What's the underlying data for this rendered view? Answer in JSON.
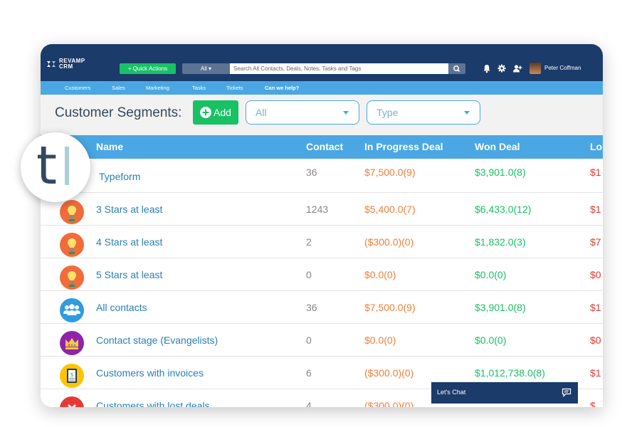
{
  "app": {
    "logo_line1": "REVAMP",
    "logo_line2": "CRM",
    "accent_color": "#1b3b6a",
    "nav_color": "#4aa7e4",
    "success_color": "#19c165"
  },
  "topbar": {
    "quick_actions_label": "+ Quick Actions",
    "scope_select": "All ▾",
    "search_placeholder": "Search All Contacts, Deals, Notes, Tasks and Tags",
    "search_icon": "search-icon",
    "icons": [
      "bell-icon",
      "gear-icon",
      "add-user-icon"
    ],
    "user_name": "Peter Coffman"
  },
  "nav": {
    "items": [
      "Customers",
      "Sales",
      "Marketing",
      "Tasks",
      "Tickets"
    ],
    "help": "Can we help?"
  },
  "page": {
    "title": "Customer Segments:",
    "add_label": "Add",
    "filter_all": "All",
    "filter_type": "Type"
  },
  "table": {
    "columns": [
      "Name",
      "Contact",
      "In Progress Deal",
      "Won Deal",
      "Lo"
    ],
    "rows": [
      {
        "icon": "typeform-icon",
        "name": "Typeform",
        "contact": "36",
        "in_progress": "$7,500.0(9)",
        "won": "$3,901.0(8)",
        "lost": "$1"
      },
      {
        "icon": "lightbulb-icon",
        "name": "3 Stars at least",
        "contact": "1243",
        "in_progress": "$5,400.0(7)",
        "won": "$6,433.0(12)",
        "lost": "$1"
      },
      {
        "icon": "lightbulb-icon",
        "name": "4 Stars at least",
        "contact": "2",
        "in_progress": "($300.0)(0)",
        "won": "$1,832.0(3)",
        "lost": "$7"
      },
      {
        "icon": "lightbulb-icon",
        "name": "5 Stars at least",
        "contact": "0",
        "in_progress": "$0.0(0)",
        "won": "$0.0(0)",
        "lost": "$0"
      },
      {
        "icon": "people-icon",
        "name": "All contacts",
        "contact": "36",
        "in_progress": "$7,500.0(9)",
        "won": "$3,901.0(8)",
        "lost": "$1"
      },
      {
        "icon": "crown-icon",
        "name": "Contact stage (Evangelists)",
        "contact": "0",
        "in_progress": "$0.0(0)",
        "won": "$0.0(0)",
        "lost": "$0"
      },
      {
        "icon": "invoice-icon",
        "name": "Customers with invoices",
        "contact": "6",
        "in_progress": "($300.0)(0)",
        "won": "$1,012,738.0(8)",
        "lost": "$1"
      },
      {
        "icon": "lost-deal-icon",
        "name": "Customers with lost deals",
        "contact": "4",
        "in_progress": "($300.0)(0)",
        "won": "",
        "lost": "$"
      }
    ]
  },
  "chat": {
    "label": "Let's Chat",
    "icon": "chat-icon"
  },
  "overlay_badge": {
    "letter": "t"
  }
}
